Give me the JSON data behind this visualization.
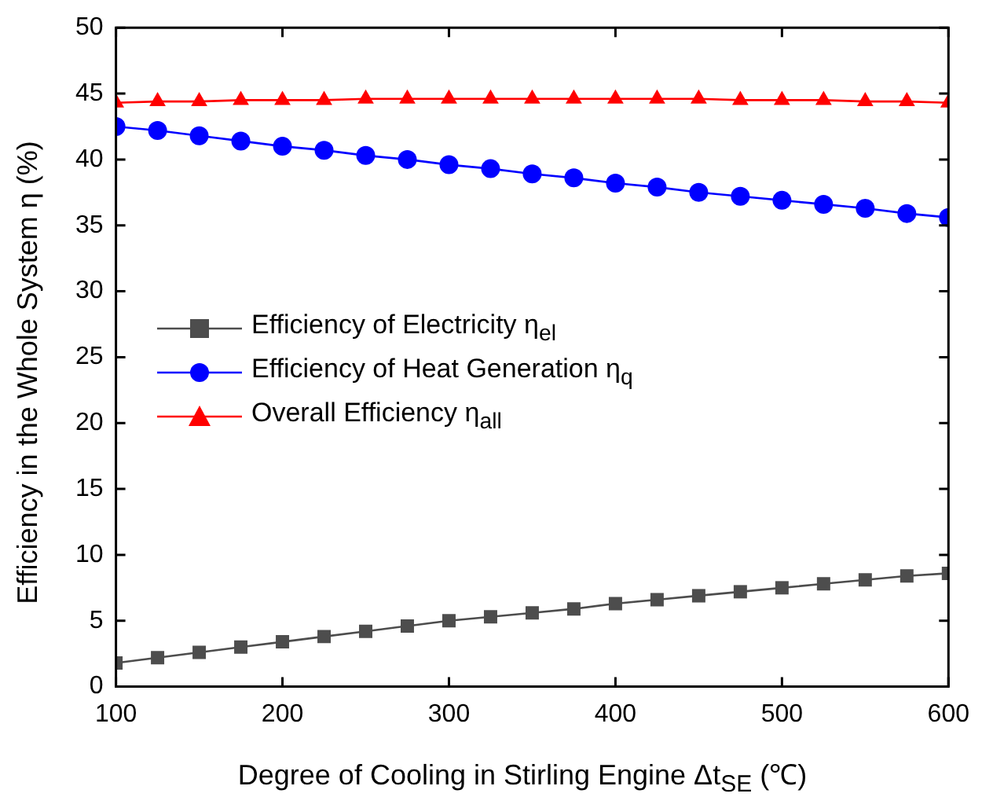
{
  "chart_data": {
    "type": "line",
    "xlabel": "Degree of Cooling in Stirling Engine Δt$_{SE}$ (℃)",
    "ylabel": "Efficiency in the Whole System η (%)",
    "x": [
      100,
      125,
      150,
      175,
      200,
      225,
      250,
      275,
      300,
      325,
      350,
      375,
      400,
      425,
      450,
      475,
      500,
      525,
      550,
      575,
      600
    ],
    "xlim": [
      100,
      600
    ],
    "xticks": [
      100,
      200,
      300,
      400,
      500,
      600
    ],
    "ylim": [
      0,
      50
    ],
    "yticks": [
      0,
      5,
      10,
      15,
      20,
      25,
      30,
      35,
      40,
      45,
      50
    ],
    "grid": false,
    "legend": "left",
    "series": [
      {
        "name": "Efficiency of Electricity η$_{el}$",
        "color": "#4d4d4d",
        "marker": "square",
        "values": [
          1.8,
          2.2,
          2.6,
          3.0,
          3.4,
          3.8,
          4.2,
          4.6,
          5.0,
          5.3,
          5.6,
          5.9,
          6.3,
          6.6,
          6.9,
          7.2,
          7.5,
          7.8,
          8.1,
          8.4,
          8.6
        ]
      },
      {
        "name": "Efficiency of Heat Generation η$_{q}$",
        "color": "#0000ff",
        "marker": "circle",
        "values": [
          42.5,
          42.2,
          41.8,
          41.4,
          41.0,
          40.7,
          40.3,
          40.0,
          39.6,
          39.3,
          38.9,
          38.6,
          38.2,
          37.9,
          37.5,
          37.2,
          36.9,
          36.6,
          36.3,
          35.9,
          35.6
        ]
      },
      {
        "name": "Overall Efficiency η$_{all}$",
        "color": "#ff0000",
        "marker": "triangle",
        "values": [
          44.3,
          44.4,
          44.4,
          44.5,
          44.5,
          44.5,
          44.6,
          44.6,
          44.6,
          44.6,
          44.6,
          44.6,
          44.6,
          44.6,
          44.6,
          44.5,
          44.5,
          44.5,
          44.4,
          44.4,
          44.3
        ]
      }
    ]
  }
}
